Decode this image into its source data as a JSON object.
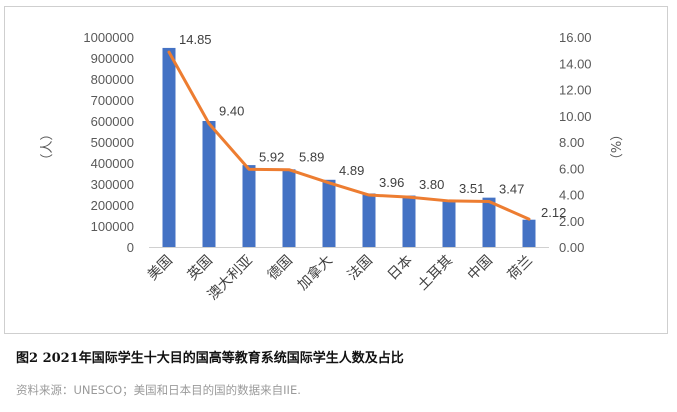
{
  "chart_data": {
    "type": "bar",
    "categories": [
      "美国",
      "英国",
      "澳大利亚",
      "德国",
      "加拿大",
      "法国",
      "日本",
      "土耳其",
      "中国",
      "荷兰"
    ],
    "series": [
      {
        "axis": "left",
        "chart_type": "bar",
        "color": "#4472C4",
        "values": [
          948000,
          600000,
          390000,
          370000,
          320000,
          255000,
          245000,
          225000,
          235000,
          130000
        ]
      },
      {
        "axis": "right",
        "chart_type": "line",
        "color": "#ED7D31",
        "values": [
          14.85,
          9.4,
          5.92,
          5.89,
          4.89,
          3.96,
          3.8,
          3.51,
          3.47,
          2.12
        ],
        "labels": [
          "14.85",
          "9.40",
          "5.92",
          "5.89",
          "4.89",
          "3.96",
          "3.80",
          "3.51",
          "3.47",
          "2.12"
        ]
      }
    ],
    "ylabel": "（人）",
    "y2label": "（%）",
    "ylim": [
      0,
      1000000
    ],
    "y_ticks": [
      "0",
      "100000",
      "200000",
      "300000",
      "400000",
      "500000",
      "600000",
      "700000",
      "800000",
      "900000",
      "1000000"
    ],
    "y2lim": [
      0,
      16
    ],
    "y2_ticks": [
      "0.00",
      "2.00",
      "4.00",
      "6.00",
      "8.00",
      "10.00",
      "12.00",
      "14.00",
      "16.00"
    ],
    "grid": false,
    "legend": "none"
  },
  "caption": "图2 2021年国际学生十大目的国高等教育系统国际学生人数及占比",
  "source": "资料来源：UNESCO；美国和日本目的国的数据来自IIE."
}
